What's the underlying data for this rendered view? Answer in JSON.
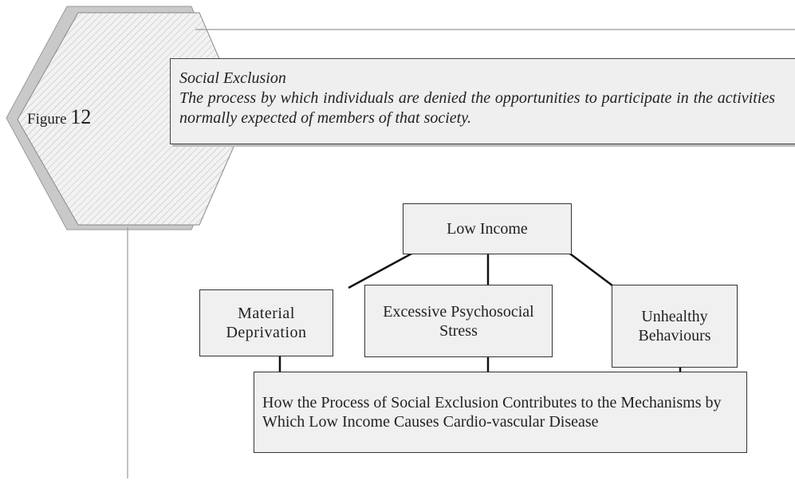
{
  "figure": {
    "label": "Figure",
    "number": "12"
  },
  "definition": {
    "term": "Social Exclusion",
    "text": "The process by which individuals are denied the opportunities to participate in the activities normally expected of members of that society."
  },
  "nodes": [
    {
      "label": "Low Income"
    },
    {
      "label": "Material Deprivation"
    },
    {
      "label": "Excessive Psychosocial Stress"
    },
    {
      "label": "Unhealthy Behaviours"
    },
    {
      "label": "How the Process of Social Exclusion Contributes to the Mechanisms by Which Low Income Causes Cardio-vascular Disease"
    }
  ]
}
